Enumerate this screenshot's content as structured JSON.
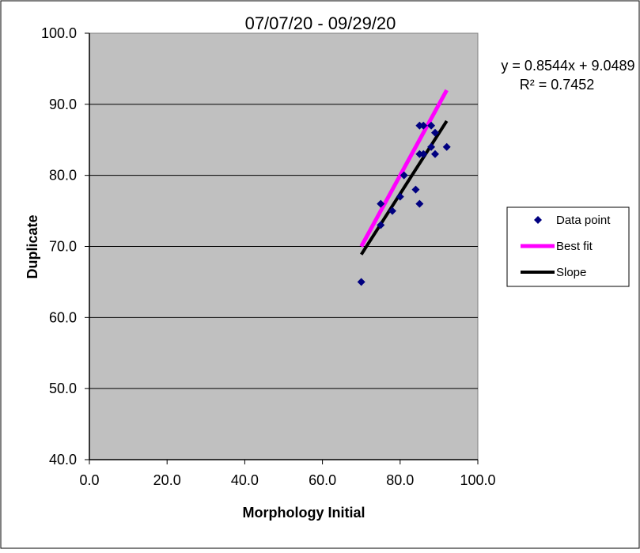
{
  "chart_data": {
    "type": "scatter",
    "title": "07/07/20 - 09/29/20",
    "xlabel": "Morphology Initial",
    "ylabel": "Duplicate",
    "xlim": [
      0,
      100
    ],
    "ylim": [
      40,
      100
    ],
    "x_ticks": [
      "0.0",
      "20.0",
      "40.0",
      "60.0",
      "80.0",
      "100.0"
    ],
    "y_ticks": [
      "40.0",
      "50.0",
      "60.0",
      "70.0",
      "80.0",
      "90.0",
      "100.0"
    ],
    "x_tick_values": [
      0,
      20,
      40,
      60,
      80,
      100
    ],
    "y_tick_values": [
      40,
      50,
      60,
      70,
      80,
      90,
      100
    ],
    "grid": "horizontal",
    "plot_background": "#c0c0c0",
    "legend_position": "right",
    "annotations": {
      "equation": "y = 0.8544x + 9.0489",
      "r_squared": "R² = 0.7452"
    },
    "series": [
      {
        "name": "Data point",
        "kind": "scatter",
        "color": "#000080",
        "points": [
          [
            70,
            65
          ],
          [
            75,
            73
          ],
          [
            75,
            76
          ],
          [
            78,
            75
          ],
          [
            80,
            77
          ],
          [
            81,
            80
          ],
          [
            84,
            78
          ],
          [
            85,
            76
          ],
          [
            85,
            83
          ],
          [
            85,
            87
          ],
          [
            86,
            87
          ],
          [
            86,
            83
          ],
          [
            88,
            87
          ],
          [
            88,
            84
          ],
          [
            89,
            86
          ],
          [
            89,
            83
          ],
          [
            92,
            84
          ]
        ]
      },
      {
        "name": "Best fit",
        "kind": "line",
        "color": "#ff00ff",
        "points": [
          [
            70,
            70
          ],
          [
            92,
            92
          ]
        ]
      },
      {
        "name": "Slope",
        "kind": "line",
        "color": "#000000",
        "points": [
          [
            70,
            68.86
          ],
          [
            92,
            87.65
          ]
        ]
      }
    ]
  }
}
